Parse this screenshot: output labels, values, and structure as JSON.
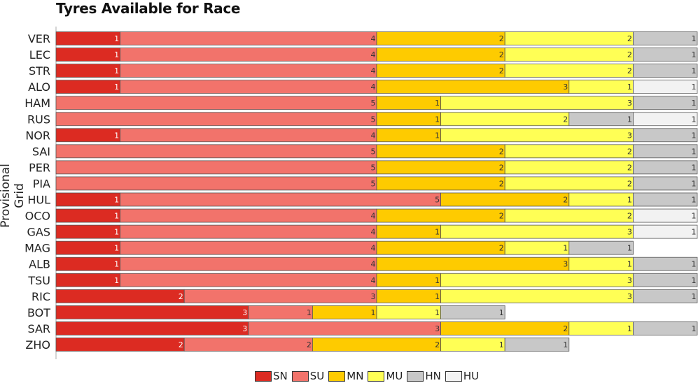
{
  "chart_data": {
    "type": "bar",
    "orientation": "horizontal",
    "stacked": true,
    "title": "Tyres Available for Race",
    "ylabel": "Provisional Grid",
    "xlabel": "",
    "categories": [
      "VER",
      "LEC",
      "STR",
      "ALO",
      "HAM",
      "RUS",
      "NOR",
      "SAI",
      "PER",
      "PIA",
      "HUL",
      "OCO",
      "GAS",
      "MAG",
      "ALB",
      "TSU",
      "RIC",
      "BOT",
      "SAR",
      "ZHO"
    ],
    "series_order": [
      "SN",
      "SU",
      "MN",
      "MU",
      "HN",
      "HU"
    ],
    "colors": {
      "SN": "#dc2b22",
      "SU": "#f2736b",
      "MN": "#fecb00",
      "MU": "#ffff55",
      "HN": "#c8c8c8",
      "HU": "#f2f2f2"
    },
    "rows": [
      {
        "driver": "VER",
        "segments": [
          [
            "SN",
            1
          ],
          [
            "SU",
            4
          ],
          [
            "MN",
            2
          ],
          [
            "MU",
            2
          ],
          [
            "HN",
            1
          ]
        ]
      },
      {
        "driver": "LEC",
        "segments": [
          [
            "SN",
            1
          ],
          [
            "SU",
            4
          ],
          [
            "MN",
            2
          ],
          [
            "MU",
            2
          ],
          [
            "HN",
            1
          ]
        ]
      },
      {
        "driver": "STR",
        "segments": [
          [
            "SN",
            1
          ],
          [
            "SU",
            4
          ],
          [
            "MN",
            2
          ],
          [
            "MU",
            2
          ],
          [
            "HN",
            1
          ]
        ]
      },
      {
        "driver": "ALO",
        "segments": [
          [
            "SN",
            1
          ],
          [
            "SU",
            4
          ],
          [
            "MN",
            3
          ],
          [
            "MU",
            1
          ],
          [
            "HU",
            1
          ]
        ]
      },
      {
        "driver": "HAM",
        "segments": [
          [
            "SU",
            5
          ],
          [
            "MN",
            1
          ],
          [
            "MU",
            3
          ],
          [
            "HN",
            1
          ]
        ]
      },
      {
        "driver": "RUS",
        "segments": [
          [
            "SU",
            5
          ],
          [
            "MN",
            1
          ],
          [
            "MU",
            2
          ],
          [
            "HN",
            1
          ],
          [
            "HU",
            1
          ]
        ]
      },
      {
        "driver": "NOR",
        "segments": [
          [
            "SN",
            1
          ],
          [
            "SU",
            4
          ],
          [
            "MN",
            1
          ],
          [
            "MU",
            3
          ],
          [
            "HN",
            1
          ]
        ]
      },
      {
        "driver": "SAI",
        "segments": [
          [
            "SU",
            5
          ],
          [
            "MN",
            2
          ],
          [
            "MU",
            2
          ],
          [
            "HN",
            1
          ]
        ]
      },
      {
        "driver": "PER",
        "segments": [
          [
            "SU",
            5
          ],
          [
            "MN",
            2
          ],
          [
            "MU",
            2
          ],
          [
            "HN",
            1
          ]
        ]
      },
      {
        "driver": "PIA",
        "segments": [
          [
            "SU",
            5
          ],
          [
            "MN",
            2
          ],
          [
            "MU",
            2
          ],
          [
            "HN",
            1
          ]
        ]
      },
      {
        "driver": "HUL",
        "segments": [
          [
            "SN",
            1
          ],
          [
            "SU",
            5
          ],
          [
            "MN",
            2
          ],
          [
            "MU",
            1
          ],
          [
            "HN",
            1
          ]
        ]
      },
      {
        "driver": "OCO",
        "segments": [
          [
            "SN",
            1
          ],
          [
            "SU",
            4
          ],
          [
            "MN",
            2
          ],
          [
            "MU",
            2
          ],
          [
            "HU",
            1
          ]
        ]
      },
      {
        "driver": "GAS",
        "segments": [
          [
            "SN",
            1
          ],
          [
            "SU",
            4
          ],
          [
            "MN",
            1
          ],
          [
            "MU",
            3
          ],
          [
            "HU",
            1
          ]
        ]
      },
      {
        "driver": "MAG",
        "segments": [
          [
            "SN",
            1
          ],
          [
            "SU",
            4
          ],
          [
            "MN",
            2
          ],
          [
            "MU",
            1
          ],
          [
            "HN",
            1
          ]
        ]
      },
      {
        "driver": "ALB",
        "segments": [
          [
            "SN",
            1
          ],
          [
            "SU",
            4
          ],
          [
            "MN",
            3
          ],
          [
            "MU",
            1
          ],
          [
            "HN",
            1
          ]
        ]
      },
      {
        "driver": "TSU",
        "segments": [
          [
            "SN",
            1
          ],
          [
            "SU",
            4
          ],
          [
            "MN",
            1
          ],
          [
            "MU",
            3
          ],
          [
            "HN",
            1
          ]
        ]
      },
      {
        "driver": "RIC",
        "segments": [
          [
            "SN",
            2
          ],
          [
            "SU",
            3
          ],
          [
            "MN",
            1
          ],
          [
            "MU",
            3
          ],
          [
            "HN",
            1
          ]
        ]
      },
      {
        "driver": "BOT",
        "segments": [
          [
            "SN",
            3
          ],
          [
            "SU",
            1
          ],
          [
            "MN",
            1
          ],
          [
            "MU",
            1
          ],
          [
            "HN",
            1
          ]
        ]
      },
      {
        "driver": "SAR",
        "segments": [
          [
            "SN",
            3
          ],
          [
            "SU",
            3
          ],
          [
            "MN",
            2
          ],
          [
            "MU",
            1
          ],
          [
            "HN",
            1
          ]
        ]
      },
      {
        "driver": "ZHO",
        "segments": [
          [
            "SN",
            2
          ],
          [
            "SU",
            2
          ],
          [
            "MN",
            2
          ],
          [
            "MU",
            1
          ],
          [
            "HN",
            1
          ]
        ]
      }
    ],
    "xlim": [
      0,
      10
    ],
    "grid": false,
    "legend_placement": "bottom-center"
  }
}
